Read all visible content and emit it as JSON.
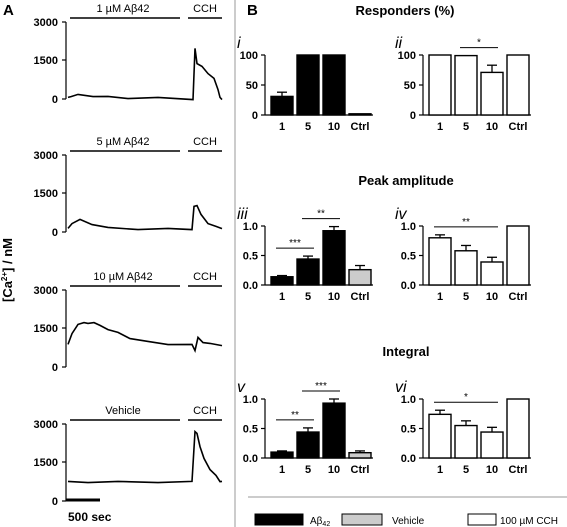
{
  "panel_a": {
    "label": "A",
    "ylabel": "[Ca2+] / nM",
    "scale_bar_label": "500 sec",
    "traces": [
      {
        "condition": "1 µM Aβ42",
        "sub": "",
        "cch": "CCH",
        "yticks": [
          "3000",
          "1500",
          "0"
        ]
      },
      {
        "condition": "5 µM Aβ42",
        "sub": "",
        "cch": "CCH",
        "yticks": [
          "3000",
          "1500",
          "0"
        ]
      },
      {
        "condition": "10 µM Aβ42",
        "sub": "",
        "cch": "CCH",
        "yticks": [
          "3000",
          "1500",
          "0"
        ]
      },
      {
        "condition": "Vehicle",
        "sub": "",
        "cch": "CCH",
        "yticks": [
          "3000",
          "1500",
          "0"
        ]
      }
    ]
  },
  "panel_b": {
    "label": "B",
    "sections": {
      "responders": "Responders (%)",
      "peak": "Peak amplitude",
      "integral": "Integral"
    },
    "legend": {
      "abeta": "Aβ42",
      "vehicle": "Vehicle",
      "cch": "100 µM CCH"
    }
  },
  "chart_data": [
    {
      "id": "i",
      "type": "bar",
      "subpanel_label": "i",
      "categories": [
        "1",
        "5",
        "10",
        "Ctrl"
      ],
      "values": [
        31,
        100,
        100,
        1
      ],
      "errors": [
        7,
        0,
        0,
        0
      ],
      "fills": [
        "#000000",
        "#000000",
        "#000000",
        "#cccccc"
      ],
      "ylim": [
        0,
        100
      ],
      "yticks": [
        "0",
        "50",
        "100"
      ],
      "significance": []
    },
    {
      "id": "ii",
      "type": "bar",
      "subpanel_label": "ii",
      "categories": [
        "1",
        "5",
        "10",
        "Ctrl"
      ],
      "values": [
        100,
        99,
        71,
        100
      ],
      "errors": [
        0,
        0,
        12,
        0
      ],
      "fills": [
        "#ffffff",
        "#ffffff",
        "#ffffff",
        "#ffffff"
      ],
      "ylim": [
        0,
        100
      ],
      "yticks": [
        "0",
        "50",
        "100"
      ],
      "significance": [
        {
          "from": 1,
          "to": 2,
          "label": "*"
        }
      ]
    },
    {
      "id": "iii",
      "type": "bar",
      "subpanel_label": "iii",
      "categories": [
        "1",
        "5",
        "10",
        "Ctrl"
      ],
      "values": [
        0.14,
        0.44,
        0.92,
        0.26
      ],
      "errors": [
        0.02,
        0.05,
        0.07,
        0.07
      ],
      "fills": [
        "#000000",
        "#000000",
        "#000000",
        "#cccccc"
      ],
      "ylim": [
        0,
        1.0
      ],
      "yticks": [
        "0.0",
        "0.5",
        "1.0"
      ],
      "significance": [
        {
          "from": 0,
          "to": 1,
          "label": "***"
        },
        {
          "from": 1,
          "to": 2,
          "label": "**"
        }
      ]
    },
    {
      "id": "iv",
      "type": "bar",
      "subpanel_label": "iv",
      "categories": [
        "1",
        "5",
        "10",
        "Ctrl"
      ],
      "values": [
        0.8,
        0.58,
        0.39,
        1.0
      ],
      "errors": [
        0.05,
        0.09,
        0.08,
        0
      ],
      "fills": [
        "#ffffff",
        "#ffffff",
        "#ffffff",
        "#ffffff"
      ],
      "ylim": [
        0,
        1.0
      ],
      "yticks": [
        "0.0",
        "0.5",
        "1.0"
      ],
      "significance": [
        {
          "from": 0,
          "to": 2,
          "label": "**"
        }
      ]
    },
    {
      "id": "v",
      "type": "bar",
      "subpanel_label": "v",
      "categories": [
        "1",
        "5",
        "10",
        "Ctrl"
      ],
      "values": [
        0.1,
        0.44,
        0.93,
        0.09
      ],
      "errors": [
        0.02,
        0.07,
        0.07,
        0.03
      ],
      "fills": [
        "#000000",
        "#000000",
        "#000000",
        "#cccccc"
      ],
      "ylim": [
        0,
        1.0
      ],
      "yticks": [
        "0.0",
        "0.5",
        "1.0"
      ],
      "significance": [
        {
          "from": 0,
          "to": 1,
          "label": "**"
        },
        {
          "from": 1,
          "to": 2,
          "label": "***"
        }
      ]
    },
    {
      "id": "vi",
      "type": "bar",
      "subpanel_label": "vi",
      "categories": [
        "1",
        "5",
        "10",
        "Ctrl"
      ],
      "values": [
        0.74,
        0.55,
        0.44,
        1.0
      ],
      "errors": [
        0.07,
        0.08,
        0.08,
        0
      ],
      "fills": [
        "#ffffff",
        "#ffffff",
        "#ffffff",
        "#ffffff"
      ],
      "ylim": [
        0,
        1.0
      ],
      "yticks": [
        "0.0",
        "0.5",
        "1.0"
      ],
      "significance": [
        {
          "from": 0,
          "to": 2,
          "label": "*"
        }
      ]
    }
  ]
}
